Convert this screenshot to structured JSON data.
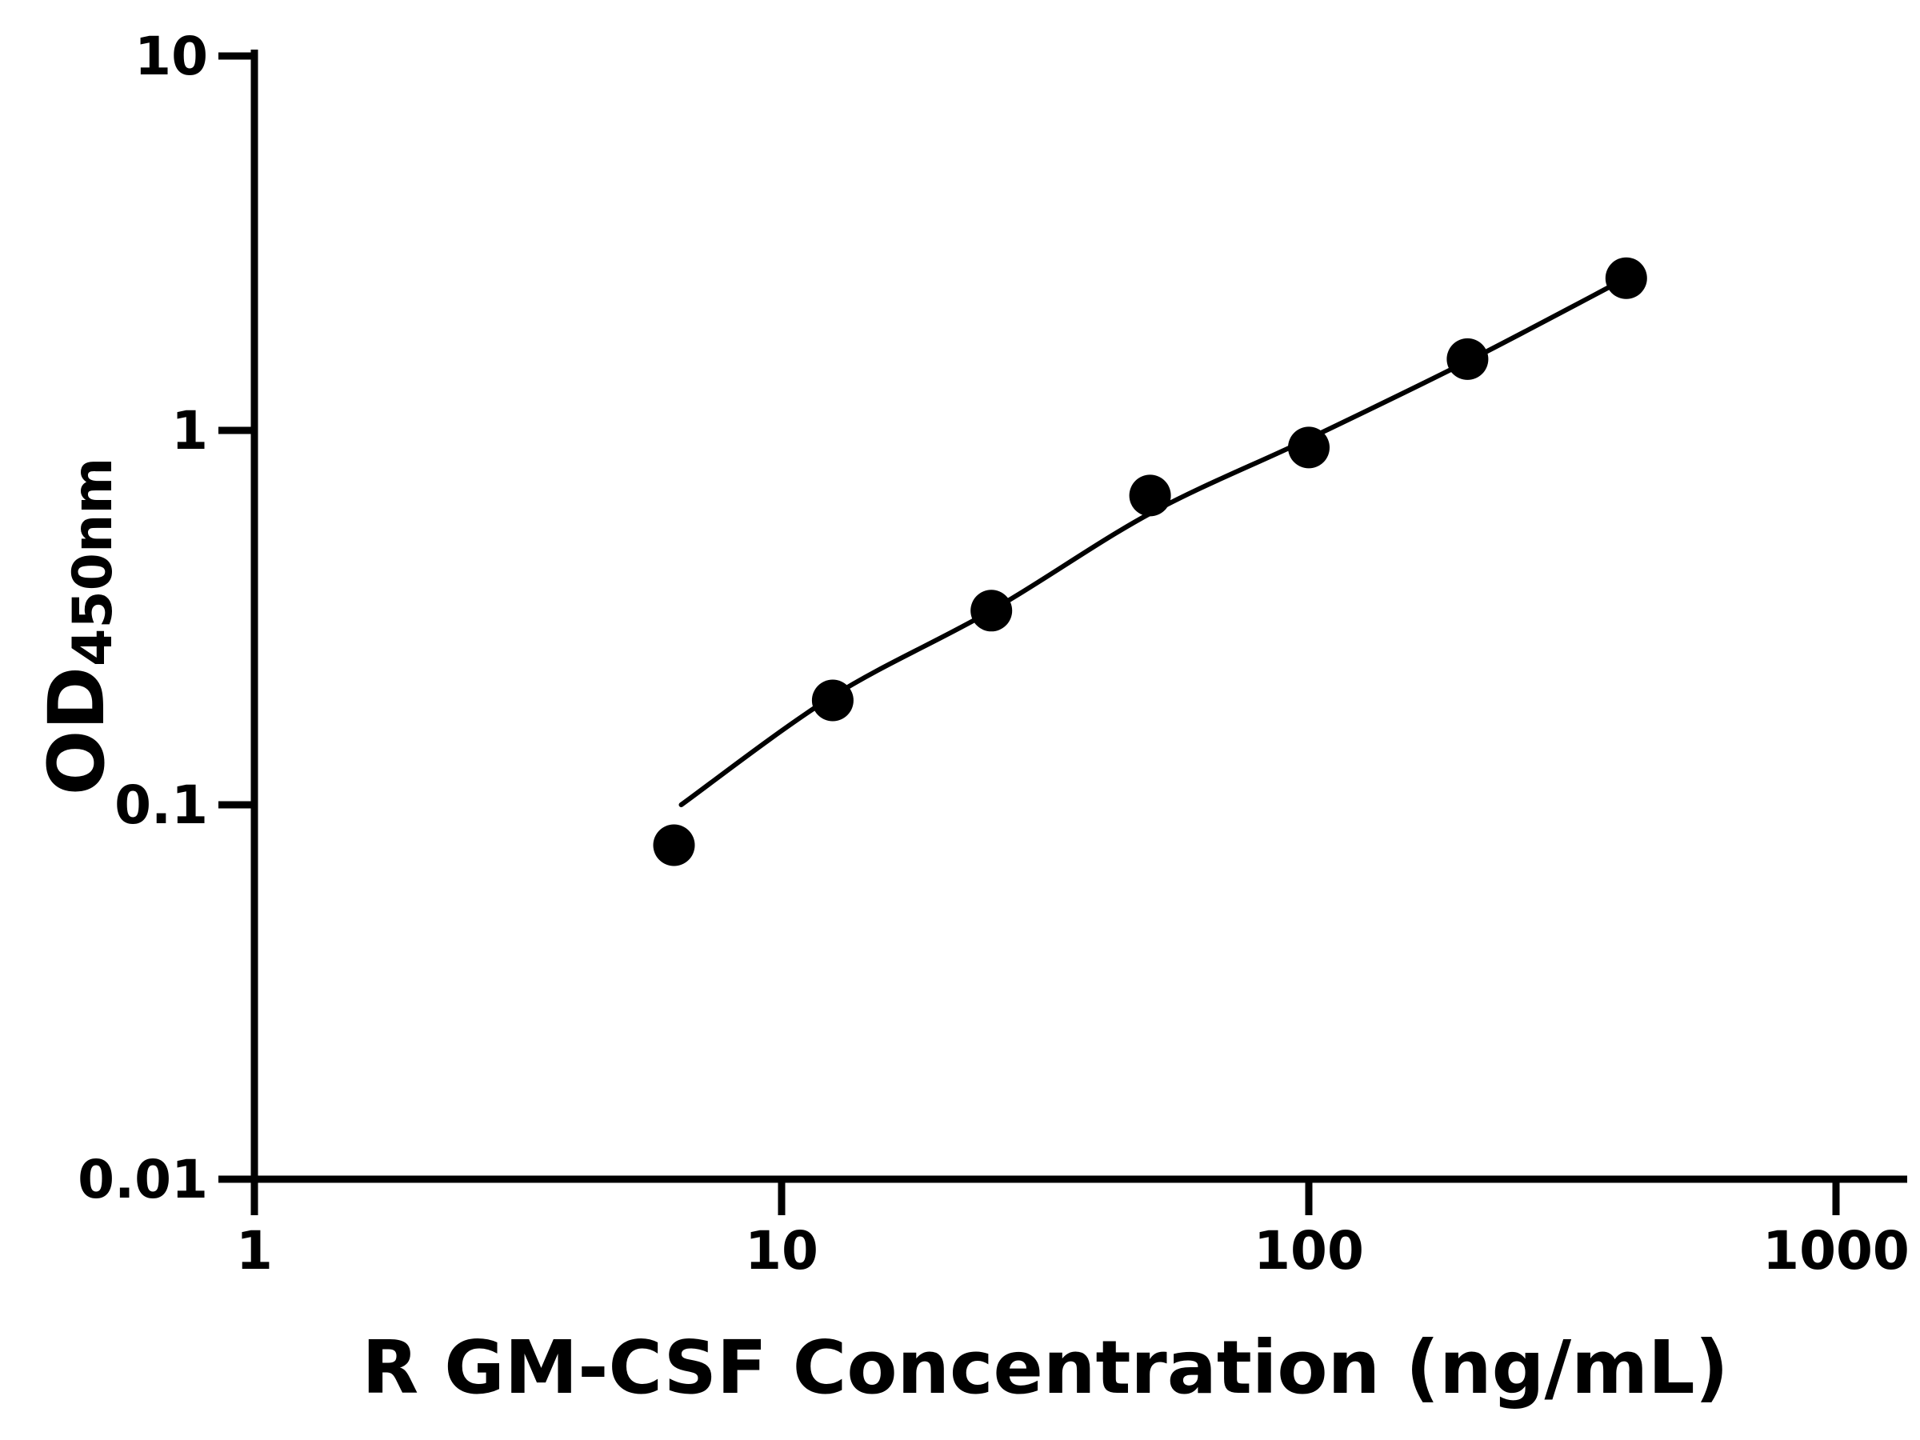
{
  "figure": {
    "background_color": "#ffffff",
    "foreground_color": "#000000"
  },
  "chart_data": {
    "type": "scatter",
    "title": "",
    "xlabel": "R GM-CSF Concentration (ng/mL)",
    "ylabel_main": "OD",
    "ylabel_sub": "450nm",
    "x_scale": "log",
    "y_scale": "log",
    "xlim": [
      1,
      1000
    ],
    "ylim": [
      0.01,
      10
    ],
    "grid": false,
    "legend": null,
    "x_ticks": [
      {
        "value": 1,
        "label": "1"
      },
      {
        "value": 10,
        "label": "10"
      },
      {
        "value": 100,
        "label": "100"
      },
      {
        "value": 1000,
        "label": "1000"
      }
    ],
    "y_ticks": [
      {
        "value": 0.01,
        "label": "0.01"
      },
      {
        "value": 0.1,
        "label": "0.1"
      },
      {
        "value": 1,
        "label": "1"
      },
      {
        "value": 10,
        "label": "10"
      }
    ],
    "points": [
      {
        "x": 6.25,
        "y": 0.078
      },
      {
        "x": 12.5,
        "y": 0.19
      },
      {
        "x": 25,
        "y": 0.33
      },
      {
        "x": 50,
        "y": 0.67
      },
      {
        "x": 100,
        "y": 0.9
      },
      {
        "x": 200,
        "y": 1.55
      },
      {
        "x": 400,
        "y": 2.55
      }
    ],
    "fit_curve": [
      [
        6.45,
        0.1
      ],
      [
        12.5,
        0.195
      ],
      [
        25,
        0.33
      ],
      [
        50,
        0.6
      ],
      [
        100,
        0.95
      ],
      [
        200,
        1.53
      ],
      [
        400,
        2.55
      ]
    ],
    "marker_color": "#000000",
    "line_color": "#000000",
    "axis_color": "#000000",
    "tick_label_color": "#000000"
  }
}
